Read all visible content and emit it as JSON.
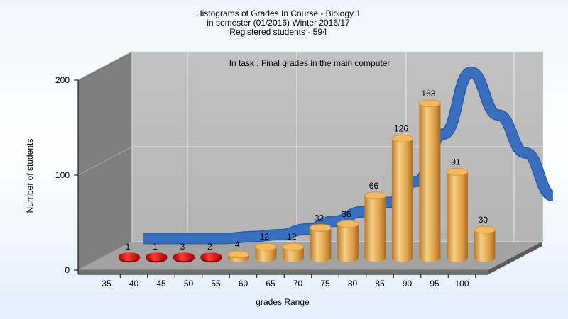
{
  "chart_data": {
    "type": "bar",
    "title": [
      "Histograms of Grades  In Course - Biology 1",
      "in semester  (01/2016) Winter 2016/17",
      "Registered students - 594"
    ],
    "subtitle": "In task : Final grades in the main computer",
    "xlabel": "grades Range",
    "ylabel": "Number of students",
    "categories": [
      "35",
      "40",
      "45",
      "50",
      "55",
      "60",
      "65",
      "70",
      "75",
      "80",
      "85",
      "90",
      "95",
      "100"
    ],
    "values": [
      1,
      1,
      3,
      2,
      4,
      12,
      12,
      32,
      36,
      66,
      126,
      163,
      91,
      30
    ],
    "y_ticks": [
      "0",
      "100",
      "200"
    ],
    "ylim": [
      0,
      200
    ],
    "grid": true,
    "trend_line": [
      10,
      10,
      10,
      10,
      12,
      14,
      20,
      28,
      38,
      48,
      70,
      120,
      185,
      140,
      100,
      55
    ],
    "colors": {
      "bar_low": "#e01010",
      "bar_high": "#e3a445",
      "trend": "#3a6fc0",
      "back_wall": "#bdbdbd",
      "side_wall": "#808080",
      "floor": "#9e9e9e"
    }
  }
}
